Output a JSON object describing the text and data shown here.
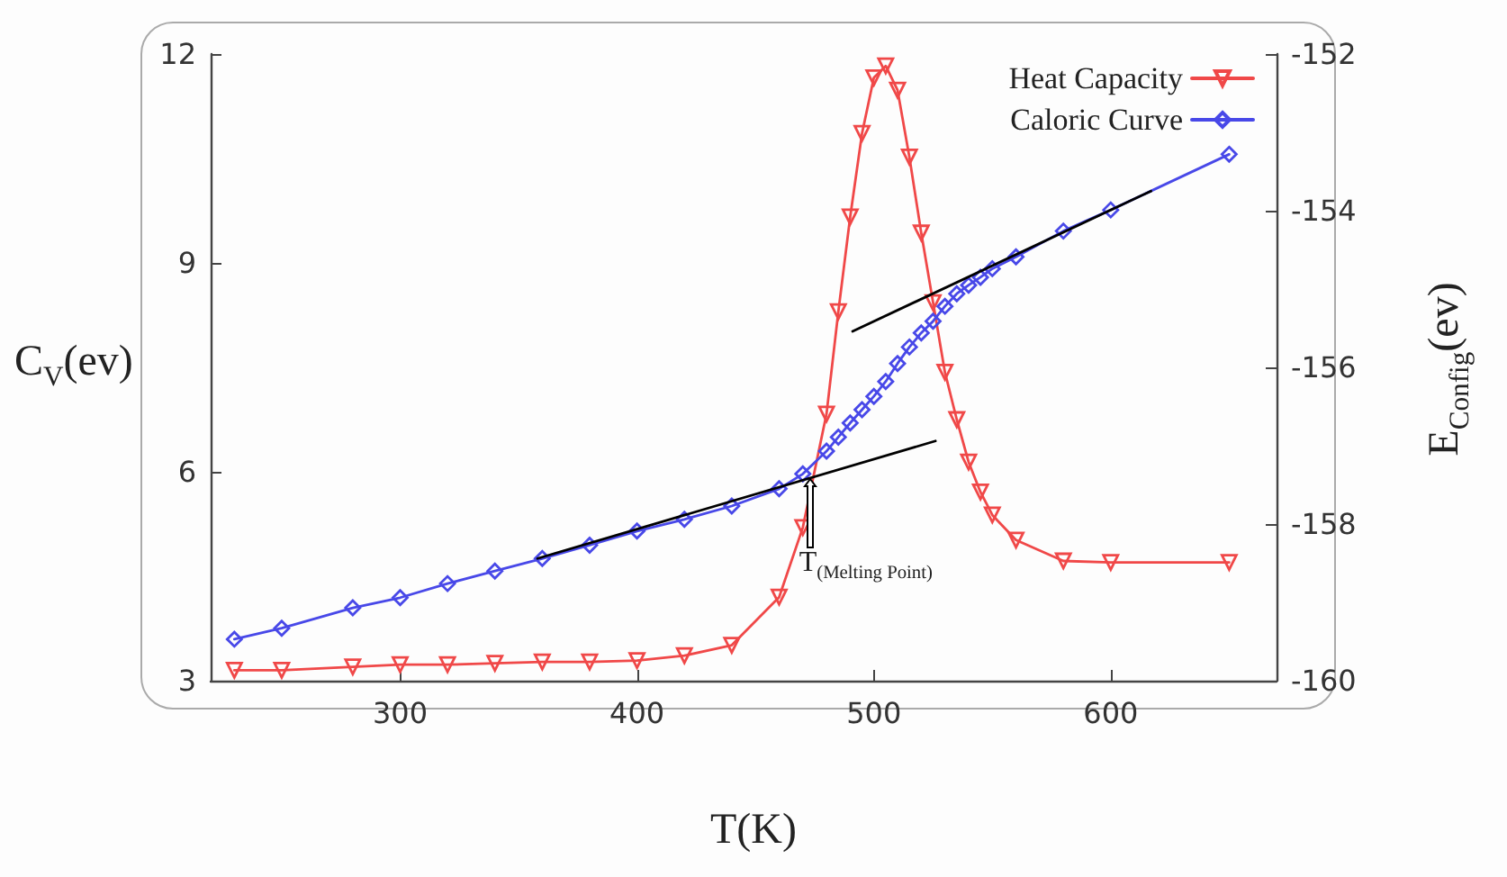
{
  "chart_data": {
    "type": "line",
    "xlabel": "T(K)",
    "ylabel": "C$_{V}$(ev)",
    "y2label": "E$_{Config}$(ev)",
    "xlim": [
      220,
      670
    ],
    "xticks": [
      300,
      400,
      500,
      600
    ],
    "ylim": [
      3,
      12
    ],
    "yticks": [
      3,
      6,
      9,
      12
    ],
    "y2lim": [
      -160,
      -152
    ],
    "y2ticks": [
      -160,
      -158,
      -156,
      -154,
      -152
    ],
    "grid": false,
    "legend": "top right",
    "line_style": "solid",
    "series": [
      {
        "name": "Heat Capacity",
        "color": "#f04848",
        "marker": "triangle",
        "x": [
          230,
          250,
          280,
          300,
          320,
          340,
          360,
          380,
          400,
          420,
          440,
          460,
          470,
          480,
          485,
          490,
          495,
          500,
          505,
          510,
          515,
          520,
          525,
          530,
          535,
          540,
          545,
          550,
          560,
          580,
          600,
          650
        ],
        "values": [
          3.15,
          3.15,
          3.2,
          3.23,
          3.23,
          3.25,
          3.27,
          3.27,
          3.29,
          3.36,
          3.51,
          4.2,
          5.2,
          6.83,
          8.3,
          9.66,
          10.86,
          11.66,
          11.83,
          11.48,
          10.52,
          9.43,
          8.43,
          7.43,
          6.75,
          6.14,
          5.71,
          5.38,
          5.02,
          4.72,
          4.7,
          4.7
        ]
      },
      {
        "name": "Caloric Curve",
        "color": "#4848e8",
        "marker": "diamond",
        "axis": "y2",
        "x": [
          230,
          250,
          280,
          300,
          320,
          340,
          360,
          380,
          400,
          420,
          440,
          460,
          470,
          480,
          485,
          490,
          495,
          500,
          505,
          510,
          515,
          520,
          525,
          530,
          535,
          540,
          545,
          550,
          560,
          580,
          600,
          650
        ],
        "values": [
          -159.47,
          -159.33,
          -159.07,
          -158.94,
          -158.76,
          -158.6,
          -158.44,
          -158.27,
          -158.09,
          -157.94,
          -157.77,
          -157.55,
          -157.36,
          -157.07,
          -156.89,
          -156.71,
          -156.54,
          -156.37,
          -156.18,
          -155.95,
          -155.74,
          -155.56,
          -155.41,
          -155.22,
          -155.06,
          -154.95,
          -154.85,
          -154.74,
          -154.59,
          -154.26,
          -153.99,
          -153.28
        ]
      },
      {
        "type": "line",
        "color": "#000000",
        "marker": "none",
        "axis": "y2",
        "x": [
          358,
          526
        ],
        "values": [
          -158.44,
          -156.94
        ]
      },
      {
        "type": "line",
        "color": "#000000",
        "marker": "none",
        "axis": "y2",
        "x": [
          491,
          617
        ],
        "values": [
          -155.54,
          -153.75
        ]
      }
    ],
    "annotations": [
      {
        "text": "T$_{(Melting Point)}$",
        "x": 473,
        "y": 5.9
      }
    ]
  }
}
